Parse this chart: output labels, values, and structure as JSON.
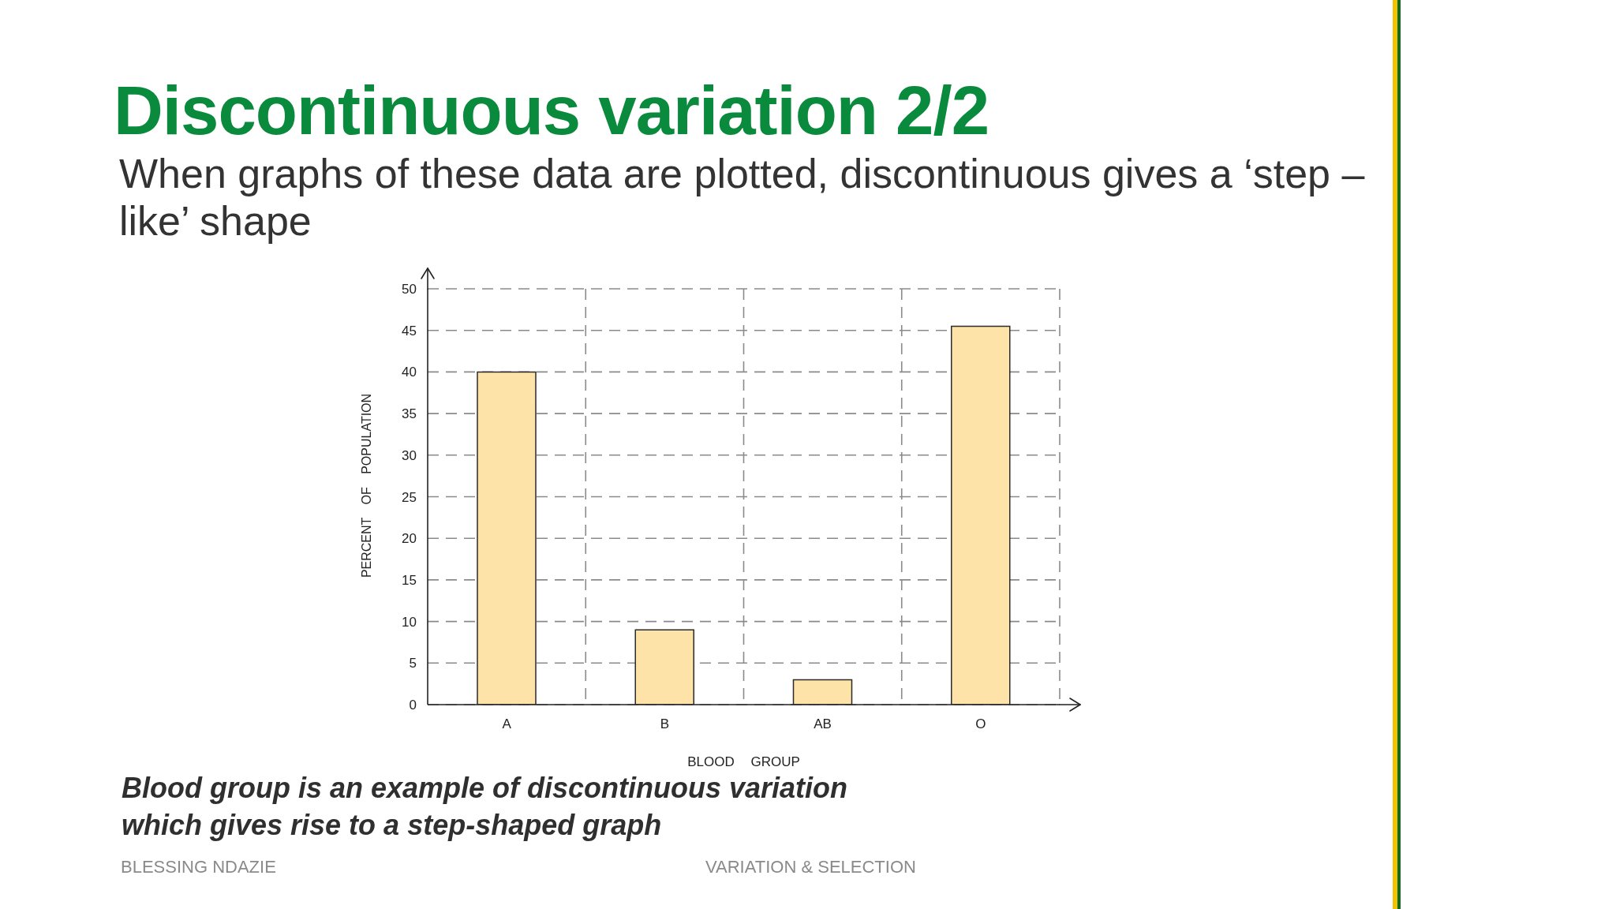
{
  "chart_data": {
    "type": "bar",
    "title": "Discontinuous variation 2/2",
    "subtitle": "When graphs of these data are plotted, discontinuous gives a ‘step – like’ shape",
    "xlabel": "BLOOD GROUP",
    "ylabel": "PERCENT OF POPULATION",
    "categories": [
      "A",
      "B",
      "AB",
      "O"
    ],
    "values": [
      40,
      9,
      3,
      45.5
    ],
    "color": "#fde3a7",
    "ylim": [
      0,
      50
    ],
    "yticks": [
      0,
      5,
      10,
      15,
      20,
      25,
      30,
      35,
      40,
      45,
      50
    ],
    "grid": true,
    "annotations": [
      "Blood group is an example of discontinuous variation\nwhich gives rise to a step-shaped graph",
      "BLESSING NDAZIE",
      "VARIATION & SELECTION"
    ]
  }
}
